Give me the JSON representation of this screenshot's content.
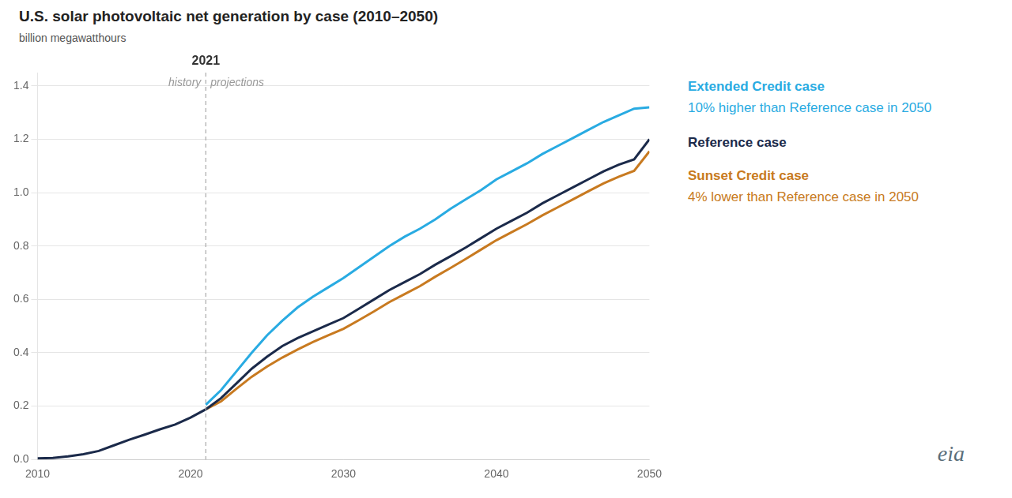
{
  "chart_data": {
    "type": "line",
    "title": "U.S. solar photovoltaic net generation by case (2010–2050)",
    "ylabel": "billion megawatthours",
    "x": [
      2010,
      2011,
      2012,
      2013,
      2014,
      2015,
      2016,
      2017,
      2018,
      2019,
      2020,
      2021,
      2022,
      2023,
      2024,
      2025,
      2026,
      2027,
      2028,
      2029,
      2030,
      2031,
      2032,
      2033,
      2034,
      2035,
      2036,
      2037,
      2038,
      2039,
      2040,
      2041,
      2042,
      2043,
      2044,
      2045,
      2046,
      2047,
      2048,
      2049,
      2050
    ],
    "series": [
      {
        "name": "Extended Credit case",
        "color": "#29ABE2",
        "annotation": "10% higher than Reference case in 2050",
        "values": [
          null,
          null,
          null,
          null,
          null,
          null,
          null,
          null,
          null,
          null,
          null,
          0.205,
          0.26,
          0.33,
          0.4,
          0.465,
          0.52,
          0.57,
          0.61,
          0.645,
          0.68,
          0.72,
          0.76,
          0.8,
          0.835,
          0.865,
          0.9,
          0.94,
          0.975,
          1.01,
          1.05,
          1.08,
          1.11,
          1.145,
          1.175,
          1.205,
          1.235,
          1.265,
          1.29,
          1.315,
          1.32
        ]
      },
      {
        "name": "Reference case",
        "color": "#1B2A4A",
        "values": [
          0.004,
          0.006,
          0.012,
          0.02,
          0.032,
          0.053,
          0.074,
          0.093,
          0.113,
          0.131,
          0.157,
          0.188,
          0.23,
          0.285,
          0.34,
          0.385,
          0.425,
          0.455,
          0.48,
          0.505,
          0.53,
          0.565,
          0.6,
          0.635,
          0.665,
          0.695,
          0.73,
          0.762,
          0.795,
          0.83,
          0.865,
          0.895,
          0.925,
          0.96,
          0.99,
          1.02,
          1.05,
          1.08,
          1.105,
          1.125,
          1.2
        ]
      },
      {
        "name": "Sunset Credit case",
        "color": "#C87A20",
        "annotation": "4% lower than Reference case in 2050",
        "values": [
          null,
          null,
          null,
          null,
          null,
          null,
          null,
          null,
          null,
          null,
          null,
          0.188,
          0.218,
          0.265,
          0.31,
          0.348,
          0.382,
          0.412,
          0.44,
          0.465,
          0.49,
          0.522,
          0.555,
          0.59,
          0.62,
          0.65,
          0.685,
          0.718,
          0.752,
          0.787,
          0.822,
          0.852,
          0.882,
          0.915,
          0.945,
          0.975,
          1.005,
          1.035,
          1.06,
          1.082,
          1.155
        ]
      }
    ],
    "xlim": [
      2010,
      2050
    ],
    "xticks": [
      2010,
      2020,
      2030,
      2040,
      2050
    ],
    "ylim": [
      0,
      1.45
    ],
    "yticks": [
      {
        "value": 0,
        "label": "0.0"
      },
      0.2,
      0.4,
      0.6,
      0.8,
      {
        "value": 1,
        "label": "1.0"
      },
      1.2,
      1.4
    ],
    "divider": {
      "value": 2021,
      "label": "2021",
      "left_label": "history",
      "right_label": "projections"
    },
    "annotations": [
      "eia"
    ],
    "grid": true,
    "legend": false
  }
}
